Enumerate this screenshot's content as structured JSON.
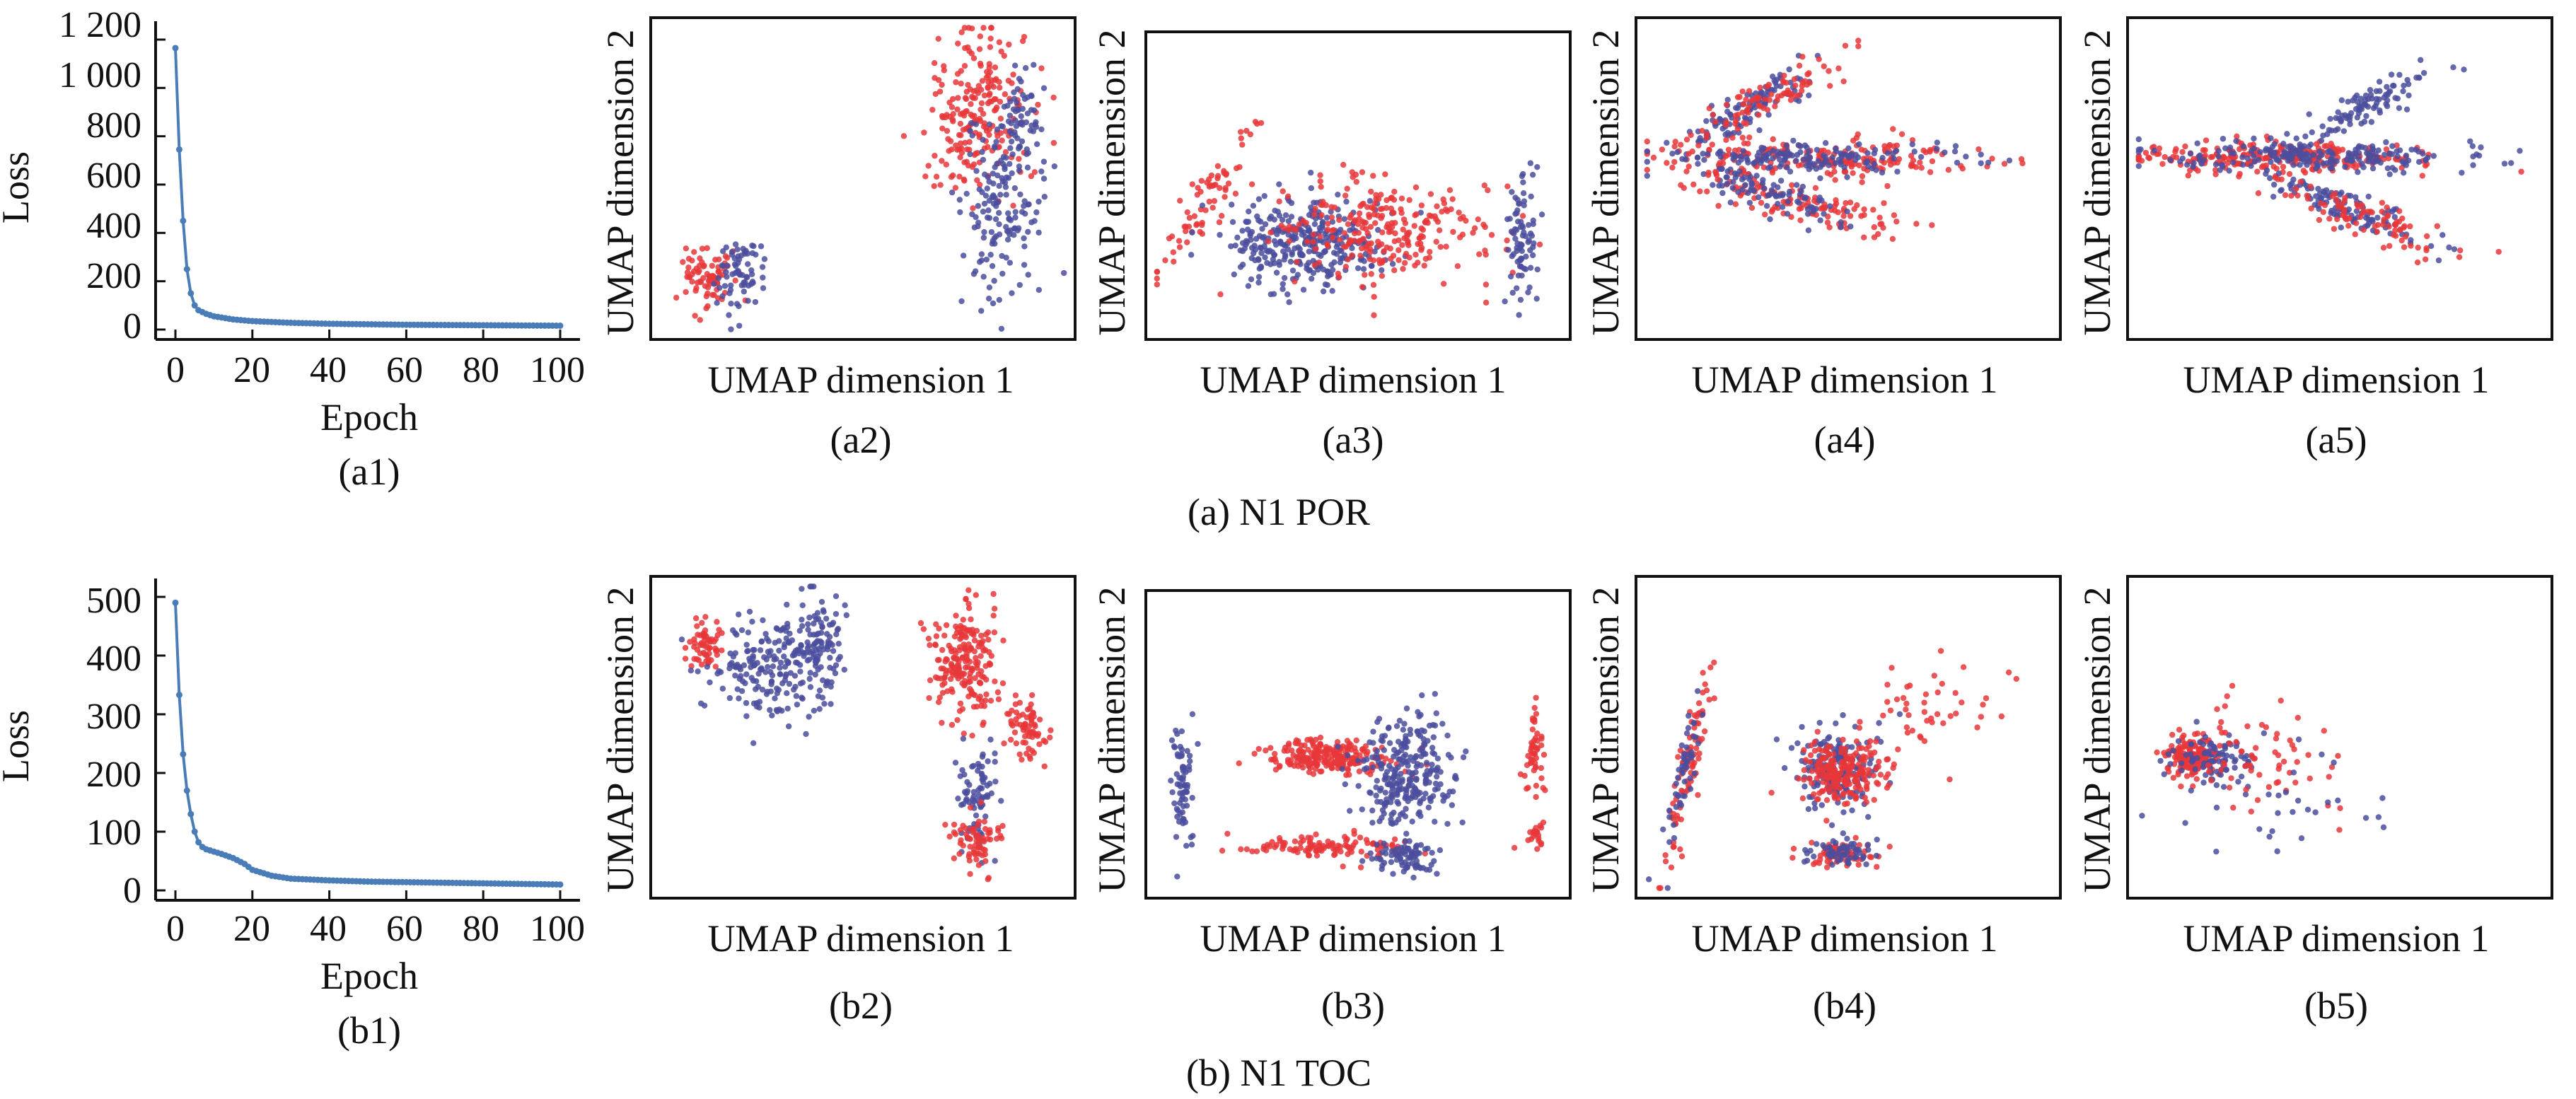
{
  "figure": {
    "rows": [
      {
        "caption": "(a) N1 POR",
        "loss_panel": {
          "label": "(a1)",
          "xlabel": "Epoch",
          "ylabel": "Loss",
          "ylim": [
            0,
            1200
          ],
          "yticks": [
            "0",
            "200",
            "400",
            "600",
            "800",
            "1 000",
            "1 200"
          ],
          "xticks": [
            "0",
            "20",
            "40",
            "60",
            "80",
            "100"
          ]
        },
        "umap_panels": [
          {
            "label": "(a2)",
            "xlabel": "UMAP dimension 1",
            "ylabel": "UMAP dimension 2"
          },
          {
            "label": "(a3)",
            "xlabel": "UMAP dimension 1",
            "ylabel": "UMAP dimension 2"
          },
          {
            "label": "(a4)",
            "xlabel": "UMAP dimension 1",
            "ylabel": "UMAP dimension 2"
          },
          {
            "label": "(a5)",
            "xlabel": "UMAP dimension 1",
            "ylabel": "UMAP dimension 2"
          }
        ]
      },
      {
        "caption": "(b) N1 TOC",
        "loss_panel": {
          "label": "(b1)",
          "xlabel": "Epoch",
          "ylabel": "Loss",
          "ylim": [
            0,
            500
          ],
          "yticks": [
            "0",
            "100",
            "200",
            "300",
            "400",
            "500"
          ],
          "xticks": [
            "0",
            "20",
            "40",
            "60",
            "80",
            "100"
          ]
        },
        "umap_panels": [
          {
            "label": "(b2)",
            "xlabel": "UMAP dimension 1",
            "ylabel": "UMAP dimension 2"
          },
          {
            "label": "(b3)",
            "xlabel": "UMAP dimension 1",
            "ylabel": "UMAP dimension 2"
          },
          {
            "label": "(b4)",
            "xlabel": "UMAP dimension 1",
            "ylabel": "UMAP dimension 2"
          },
          {
            "label": "(b5)",
            "xlabel": "UMAP dimension 1",
            "ylabel": "UMAP dimension 2"
          }
        ]
      }
    ]
  },
  "colors": {
    "loss_line": "#4a7db8",
    "red_points": "#e8373a",
    "blue_points": "#4b4e9e"
  },
  "chart_data": [
    {
      "id": "a1",
      "type": "line",
      "title": "",
      "xlabel": "Epoch",
      "ylabel": "Loss",
      "xlim": [
        0,
        100
      ],
      "ylim": [
        0,
        1200
      ],
      "series": [
        {
          "x": [
            0,
            1,
            2,
            3,
            4,
            5,
            6,
            8,
            10,
            15,
            20,
            30,
            40,
            50,
            60,
            70,
            80,
            90,
            100
          ],
          "y": [
            1165,
            745,
            450,
            250,
            150,
            100,
            80,
            65,
            55,
            42,
            35,
            28,
            24,
            22,
            20,
            19,
            18,
            17,
            16
          ]
        }
      ]
    },
    {
      "id": "b1",
      "type": "line",
      "title": "",
      "xlabel": "Epoch",
      "ylabel": "Loss",
      "xlim": [
        0,
        100
      ],
      "ylim": [
        0,
        500
      ],
      "series": [
        {
          "x": [
            0,
            1,
            2,
            3,
            4,
            5,
            6,
            7,
            8,
            10,
            12,
            15,
            18,
            20,
            25,
            30,
            40,
            50,
            60,
            70,
            80,
            90,
            100
          ],
          "y": [
            490,
            333,
            232,
            170,
            130,
            100,
            82,
            74,
            70,
            66,
            62,
            55,
            45,
            35,
            25,
            20,
            17,
            15,
            14,
            13,
            12,
            11,
            10
          ]
        }
      ]
    },
    {
      "id": "a2",
      "type": "scatter",
      "xlabel": "UMAP dimension 1",
      "ylabel": "UMAP dimension 2",
      "xlim": [
        0,
        100
      ],
      "ylim": [
        0,
        100
      ],
      "clusters": [
        {
          "color": "red",
          "cx": 12,
          "cy": 18,
          "sx": 3,
          "sy": 5,
          "n": 80
        },
        {
          "color": "blue",
          "cx": 20,
          "cy": 18,
          "sx": 3,
          "sy": 6,
          "n": 70
        },
        {
          "color": "red",
          "cx": 78,
          "cy": 72,
          "sx": 6,
          "sy": 14,
          "n": 220
        },
        {
          "color": "blue",
          "cx": 84,
          "cy": 40,
          "sx": 5,
          "sy": 15,
          "n": 150
        },
        {
          "color": "blue",
          "cx": 88,
          "cy": 68,
          "sx": 3,
          "sy": 8,
          "n": 60
        }
      ]
    },
    {
      "id": "a3",
      "type": "scatter",
      "xlabel": "UMAP dimension 1",
      "ylabel": "UMAP dimension 2",
      "xlim": [
        0,
        100
      ],
      "ylim": [
        0,
        100
      ],
      "clusters": [
        {
          "color": "red",
          "cx": 13,
          "cy": 45,
          "sx": 2.5,
          "sy": 14,
          "n": 70,
          "tilt": -0.45
        },
        {
          "color": "blue",
          "cx": 38,
          "cy": 30,
          "sx": 10,
          "sy": 8,
          "n": 320
        },
        {
          "color": "red",
          "cx": 56,
          "cy": 35,
          "sx": 14,
          "sy": 9,
          "n": 260
        },
        {
          "color": "blue",
          "cx": 90,
          "cy": 32,
          "sx": 1.8,
          "sy": 10,
          "n": 80
        }
      ]
    },
    {
      "id": "a4",
      "type": "scatter",
      "xlabel": "UMAP dimension 1",
      "ylabel": "UMAP dimension 2",
      "xlim": [
        0,
        100
      ],
      "ylim": [
        0,
        100
      ],
      "clusters": [
        {
          "color": "blue",
          "cx": 25,
          "cy": 72,
          "sx": 10,
          "sy": 2.5,
          "n": 110,
          "tilt": 0.75
        },
        {
          "color": "red",
          "cx": 30,
          "cy": 76,
          "sx": 14,
          "sy": 2.5,
          "n": 90,
          "tilt": 0.7
        },
        {
          "color": "red",
          "cx": 42,
          "cy": 57,
          "sx": 20,
          "sy": 3,
          "n": 200
        },
        {
          "color": "blue",
          "cx": 40,
          "cy": 57,
          "sx": 18,
          "sy": 2.5,
          "n": 160
        },
        {
          "color": "red",
          "cx": 38,
          "cy": 42,
          "sx": 14,
          "sy": 3,
          "n": 120,
          "tilt": -0.35
        },
        {
          "color": "blue",
          "cx": 32,
          "cy": 45,
          "sx": 9,
          "sy": 3,
          "n": 80,
          "tilt": -0.4
        }
      ]
    },
    {
      "id": "a5",
      "type": "scatter",
      "xlabel": "UMAP dimension 1",
      "ylabel": "UMAP dimension 2",
      "xlim": [
        0,
        100
      ],
      "ylim": [
        0,
        100
      ],
      "clusters": [
        {
          "color": "red",
          "cx": 35,
          "cy": 57,
          "sx": 18,
          "sy": 2.5,
          "n": 260
        },
        {
          "color": "blue",
          "cx": 45,
          "cy": 57,
          "sx": 20,
          "sy": 2.5,
          "n": 200
        },
        {
          "color": "blue",
          "cx": 55,
          "cy": 72,
          "sx": 10,
          "sy": 2.5,
          "n": 100,
          "tilt": 0.6
        },
        {
          "color": "blue",
          "cx": 52,
          "cy": 40,
          "sx": 12,
          "sy": 2.5,
          "n": 110,
          "tilt": -0.5
        },
        {
          "color": "red",
          "cx": 55,
          "cy": 38,
          "sx": 14,
          "sy": 3,
          "n": 90,
          "tilt": -0.45
        }
      ]
    },
    {
      "id": "b2",
      "type": "scatter",
      "xlabel": "UMAP dimension 1",
      "ylabel": "UMAP dimension 2",
      "xlim": [
        0,
        100
      ],
      "ylim": [
        0,
        100
      ],
      "clusters": [
        {
          "color": "red",
          "cx": 11,
          "cy": 81,
          "sx": 2,
          "sy": 4,
          "n": 60
        },
        {
          "color": "blue",
          "cx": 26,
          "cy": 72,
          "sx": 6,
          "sy": 8,
          "n": 160
        },
        {
          "color": "blue",
          "cx": 38,
          "cy": 78,
          "sx": 4,
          "sy": 9,
          "n": 120
        },
        {
          "color": "red",
          "cx": 75,
          "cy": 75,
          "sx": 4,
          "sy": 9,
          "n": 200
        },
        {
          "color": "red",
          "cx": 90,
          "cy": 53,
          "sx": 2.5,
          "sy": 5,
          "n": 70
        },
        {
          "color": "blue",
          "cx": 78,
          "cy": 30,
          "sx": 2.5,
          "sy": 9,
          "n": 80
        },
        {
          "color": "red",
          "cx": 78,
          "cy": 16,
          "sx": 3,
          "sy": 4,
          "n": 70
        }
      ]
    },
    {
      "id": "b3",
      "type": "scatter",
      "xlabel": "UMAP dimension 1",
      "ylabel": "UMAP dimension 2",
      "xlim": [
        0,
        100
      ],
      "ylim": [
        0,
        100
      ],
      "clusters": [
        {
          "color": "blue",
          "cx": 7,
          "cy": 38,
          "sx": 1.3,
          "sy": 10,
          "n": 70
        },
        {
          "color": "red",
          "cx": 42,
          "cy": 46,
          "sx": 8,
          "sy": 3,
          "n": 220
        },
        {
          "color": "blue",
          "cx": 62,
          "cy": 40,
          "sx": 6,
          "sy": 10,
          "n": 260
        },
        {
          "color": "red",
          "cx": 42,
          "cy": 15,
          "sx": 10,
          "sy": 2,
          "n": 110
        },
        {
          "color": "blue",
          "cx": 62,
          "cy": 12,
          "sx": 4,
          "sy": 3,
          "n": 80
        },
        {
          "color": "red",
          "cx": 93,
          "cy": 48,
          "sx": 1.3,
          "sy": 6,
          "n": 50
        },
        {
          "color": "red",
          "cx": 94,
          "cy": 20,
          "sx": 1,
          "sy": 3,
          "n": 20
        }
      ]
    },
    {
      "id": "b4",
      "type": "scatter",
      "xlabel": "UMAP dimension 1",
      "ylabel": "UMAP dimension 2",
      "xlim": [
        0,
        100
      ],
      "ylim": [
        0,
        100
      ],
      "clusters": [
        {
          "color": "red",
          "cx": 11,
          "cy": 40,
          "sx": 1.5,
          "sy": 16,
          "n": 90,
          "tilt": -0.15
        },
        {
          "color": "blue",
          "cx": 10,
          "cy": 38,
          "sx": 1.2,
          "sy": 14,
          "n": 50,
          "tilt": -0.15
        },
        {
          "color": "blue",
          "cx": 48,
          "cy": 40,
          "sx": 5,
          "sy": 7,
          "n": 180
        },
        {
          "color": "red",
          "cx": 49,
          "cy": 39,
          "sx": 5,
          "sy": 5,
          "n": 200
        },
        {
          "color": "red",
          "cx": 47,
          "cy": 12,
          "sx": 4,
          "sy": 2,
          "n": 70
        },
        {
          "color": "blue",
          "cx": 48,
          "cy": 12,
          "sx": 4,
          "sy": 2,
          "n": 60
        },
        {
          "color": "red",
          "cx": 70,
          "cy": 58,
          "sx": 10,
          "sy": 8,
          "n": 50,
          "tilt": 0.5
        }
      ]
    },
    {
      "id": "b5",
      "type": "scatter",
      "xlabel": "UMAP dimension 1",
      "ylabel": "UMAP dimension 2",
      "xlim": [
        0,
        100
      ],
      "ylim": [
        0,
        100
      ],
      "clusters": [
        {
          "color": "red",
          "cx": 14,
          "cy": 44,
          "sx": 3,
          "sy": 3,
          "n": 160
        },
        {
          "color": "blue",
          "cx": 20,
          "cy": 43,
          "sx": 5,
          "sy": 4,
          "n": 90
        },
        {
          "color": "red",
          "cx": 30,
          "cy": 42,
          "sx": 10,
          "sy": 8,
          "n": 70
        },
        {
          "color": "blue",
          "cx": 36,
          "cy": 30,
          "sx": 12,
          "sy": 12,
          "n": 30
        }
      ]
    }
  ]
}
